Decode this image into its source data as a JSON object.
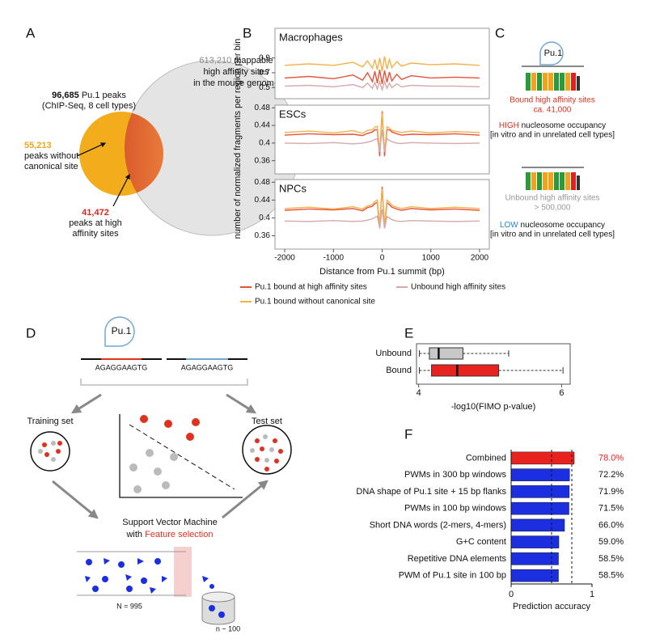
{
  "panel_labels": [
    "A",
    "B",
    "C",
    "D",
    "E",
    "F"
  ],
  "venn": {
    "genome_count": "613,210",
    "genome_lines": [
      " mappable",
      "high affinity sites",
      "in the mouse genome"
    ],
    "peaks_count": "96,685",
    "peaks_text": " Pu.1 peaks",
    "peaks_sub": "(ChIP-Seq, 8 cell types)",
    "without_count": "55,213",
    "without_lines": [
      "peaks without",
      "canonical site"
    ],
    "at_count": "41,472",
    "at_lines": [
      "peaks at high",
      "affinity sites"
    ]
  },
  "panel_c": {
    "factor": "Pu.1",
    "bound": {
      "title": "Bound high affinity sites",
      "count": "ca. 41,000",
      "level": "HIGH",
      "occupancy": " nucleosome occupancy",
      "note": "[in vitro and in unrelated cell types]"
    },
    "unbound": {
      "title": "Unbound high affinity sites",
      "count": "> 500,000",
      "level": "LOW",
      "occupancy": " nucleosome occupancy",
      "note": "[in vitro and in unrelated cell types]"
    }
  },
  "panel_d": {
    "factor": "Pu.1",
    "sequences": [
      "AGAGGAAGTG",
      "AGAGGAAGTG"
    ],
    "training": "Training set",
    "test": "Test set",
    "svm": "Support Vector Machine",
    "with": "with ",
    "feature": "Feature selection",
    "big_n": "N = 995",
    "small_n": "n ~ 100"
  },
  "chart_data": [
    {
      "type": "line",
      "title": "Macrophages",
      "x": [
        -2000,
        -1500,
        -1000,
        -600,
        -400,
        -300,
        -200,
        -150,
        -100,
        -50,
        0,
        50,
        100,
        150,
        200,
        300,
        400,
        600,
        1000,
        1500,
        2000
      ],
      "xlim": [
        -2200,
        2200
      ],
      "ylim": [
        0.35,
        1.3
      ],
      "yticks": [
        0.5,
        0.7,
        0.9
      ],
      "series": [
        {
          "name": "Pu.1 bound at high affinity sites",
          "color": "#e5533b",
          "values": [
            0.63,
            0.65,
            0.62,
            0.67,
            0.6,
            0.7,
            0.58,
            0.72,
            0.56,
            0.74,
            0.55,
            0.73,
            0.57,
            0.71,
            0.59,
            0.68,
            0.61,
            0.66,
            0.63,
            0.64,
            0.63
          ]
        },
        {
          "name": "Pu.1 bound without canonical site",
          "color": "#f2b24a",
          "values": [
            0.8,
            0.82,
            0.8,
            0.84,
            0.78,
            0.86,
            0.76,
            0.88,
            0.74,
            0.9,
            0.72,
            0.92,
            0.75,
            0.88,
            0.77,
            0.85,
            0.79,
            0.83,
            0.81,
            0.82,
            0.8
          ]
        },
        {
          "name": "Unbound high affinity sites",
          "color": "#d6a9a9",
          "values": [
            0.52,
            0.53,
            0.51,
            0.54,
            0.5,
            0.56,
            0.49,
            0.57,
            0.48,
            0.58,
            0.47,
            0.58,
            0.49,
            0.56,
            0.5,
            0.55,
            0.51,
            0.53,
            0.52,
            0.52,
            0.51
          ]
        }
      ]
    },
    {
      "type": "line",
      "title": "ESCs",
      "ylabel": "number of normalized fragments per region per bin",
      "x": [
        -2000,
        -1500,
        -1000,
        -600,
        -400,
        -300,
        -200,
        -150,
        -100,
        -50,
        0,
        50,
        100,
        150,
        200,
        300,
        400,
        600,
        1000,
        1500,
        2000
      ],
      "xlim": [
        -2200,
        2200
      ],
      "ylim": [
        0.33,
        0.486
      ],
      "yticks": [
        0.36,
        0.4,
        0.44,
        0.48
      ],
      "series": [
        {
          "color": "#e5533b",
          "values": [
            0.418,
            0.421,
            0.419,
            0.42,
            0.417,
            0.422,
            0.425,
            0.43,
            0.43,
            0.37,
            0.472,
            0.37,
            0.43,
            0.43,
            0.425,
            0.421,
            0.418,
            0.42,
            0.419,
            0.421,
            0.418
          ]
        },
        {
          "color": "#f2b24a",
          "values": [
            0.424,
            0.427,
            0.423,
            0.428,
            0.422,
            0.429,
            0.43,
            0.436,
            0.438,
            0.38,
            0.468,
            0.38,
            0.437,
            0.434,
            0.429,
            0.426,
            0.424,
            0.427,
            0.423,
            0.426,
            0.424
          ]
        },
        {
          "color": "#d6a9a9",
          "values": [
            0.4,
            0.399,
            0.401,
            0.398,
            0.4,
            0.402,
            0.405,
            0.408,
            0.41,
            0.38,
            0.43,
            0.38,
            0.41,
            0.406,
            0.403,
            0.4,
            0.399,
            0.401,
            0.4,
            0.399,
            0.4
          ]
        }
      ]
    },
    {
      "type": "line",
      "title": "NPCs",
      "xlabel": "Distance from Pu.1 summit (bp)",
      "x": [
        -2000,
        -1500,
        -1000,
        -600,
        -400,
        -300,
        -200,
        -150,
        -100,
        -50,
        0,
        50,
        100,
        150,
        200,
        300,
        400,
        600,
        1000,
        1500,
        2000
      ],
      "xlim": [
        -2200,
        2200
      ],
      "xticks": [
        -2000,
        -1000,
        0,
        1000,
        2000
      ],
      "ylim": [
        0.33,
        0.486
      ],
      "yticks": [
        0.36,
        0.4,
        0.44,
        0.48
      ],
      "series": [
        {
          "color": "#e5533b",
          "values": [
            0.417,
            0.42,
            0.418,
            0.421,
            0.416,
            0.423,
            0.426,
            0.432,
            0.435,
            0.38,
            0.47,
            0.38,
            0.434,
            0.43,
            0.424,
            0.42,
            0.417,
            0.421,
            0.418,
            0.42,
            0.417
          ]
        },
        {
          "color": "#f2b24a",
          "values": [
            0.421,
            0.424,
            0.42,
            0.425,
            0.42,
            0.427,
            0.43,
            0.437,
            0.44,
            0.385,
            0.465,
            0.385,
            0.44,
            0.435,
            0.428,
            0.424,
            0.421,
            0.425,
            0.421,
            0.424,
            0.421
          ]
        },
        {
          "color": "#d6a9a9",
          "values": [
            0.393,
            0.392,
            0.394,
            0.392,
            0.393,
            0.395,
            0.398,
            0.401,
            0.404,
            0.376,
            0.42,
            0.376,
            0.403,
            0.4,
            0.396,
            0.393,
            0.392,
            0.394,
            0.393,
            0.392,
            0.393
          ]
        }
      ]
    },
    {
      "type": "box",
      "categories": [
        "Unbound",
        "Bound"
      ],
      "xlabel": "-log10(FIMO p-value)",
      "xlim": [
        3.97,
        6.12
      ],
      "xticks": [
        4,
        6
      ],
      "boxes": [
        {
          "color": "#c8c8c8",
          "whislo": 4.01,
          "q1": 4.15,
          "med": 4.28,
          "q3": 4.62,
          "whishi": 5.26
        },
        {
          "color": "#e8231f",
          "whislo": 4.01,
          "q1": 4.18,
          "med": 4.54,
          "q3": 5.12,
          "whishi": 6.02
        }
      ]
    },
    {
      "type": "hbar",
      "xlabel": "Prediction accuracy",
      "xlim": [
        0,
        1
      ],
      "xticks": [
        0,
        1
      ],
      "reference_lines": [
        0.5,
        0.75
      ],
      "categories": [
        "Combined",
        "PWMs in 300 bp windows",
        "DNA shape of Pu.1 site + 15 bp flanks",
        "PWMs in 100 bp windows",
        "Short DNA words (2-mers, 4-mers)",
        "G+C content",
        "Repetitive DNA elements",
        "PWM of Pu.1 site in 100 bp"
      ],
      "values": [
        0.78,
        0.722,
        0.719,
        0.715,
        0.66,
        0.59,
        0.585,
        0.585
      ],
      "value_labels": [
        "78.0%",
        "72.2%",
        "71.9%",
        "71.5%",
        "66.0%",
        "59.0%",
        "58.5%",
        "58.5%"
      ],
      "colors": [
        "#e8231f",
        "#1c2fe0",
        "#1c2fe0",
        "#1c2fe0",
        "#1c2fe0",
        "#1c2fe0",
        "#1c2fe0",
        "#1c2fe0"
      ],
      "label_colors": [
        "#e8231f",
        "#111111",
        "#111111",
        "#111111",
        "#111111",
        "#111111",
        "#111111",
        "#111111"
      ]
    }
  ]
}
